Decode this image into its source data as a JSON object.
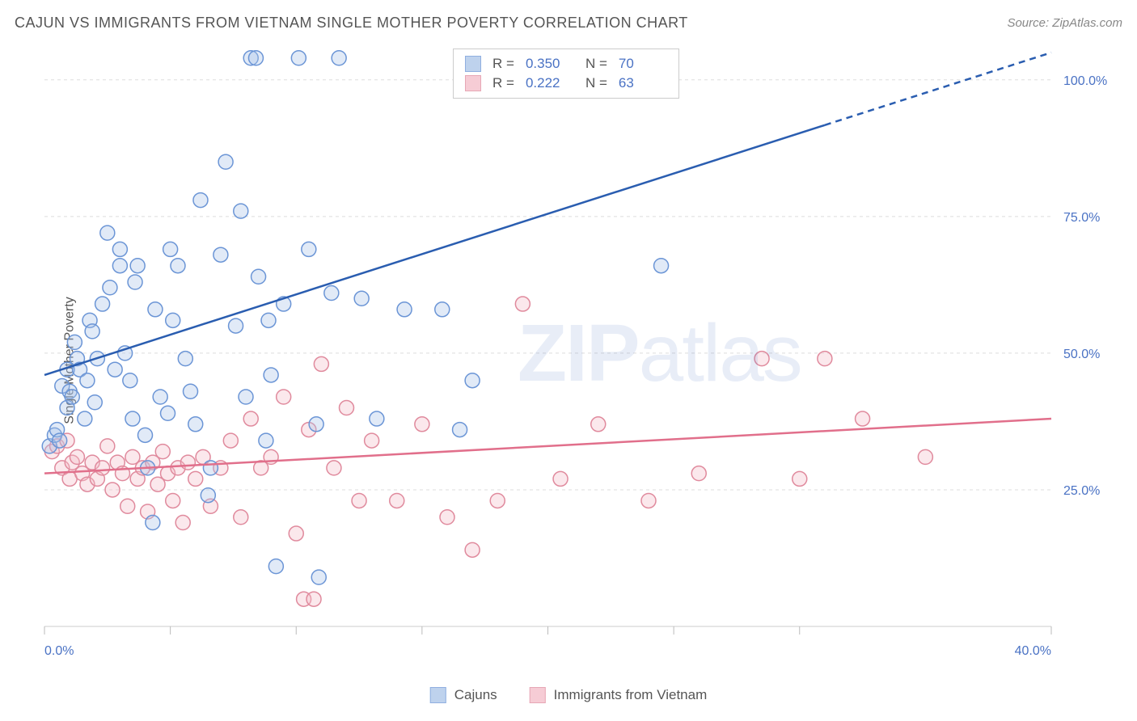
{
  "title": "CAJUN VS IMMIGRANTS FROM VIETNAM SINGLE MOTHER POVERTY CORRELATION CHART",
  "source_label": "Source: ZipAtlas.com",
  "y_axis_label": "Single Mother Poverty",
  "watermark": {
    "part1": "ZIP",
    "part2": "atlas"
  },
  "chart": {
    "type": "scatter",
    "background_color": "#ffffff",
    "grid_color": "#dddddd",
    "axis_color": "#cccccc",
    "tick_label_color": "#4a72c4",
    "xlim": [
      0,
      40
    ],
    "ylim": [
      0,
      105
    ],
    "x_ticks_major": [
      0,
      40
    ],
    "x_ticks_minor": [
      5,
      10,
      15,
      20,
      25,
      30
    ],
    "y_ticks": [
      25,
      50,
      75,
      100
    ],
    "x_tick_labels": {
      "0": "0.0%",
      "40": "40.0%"
    },
    "y_tick_labels": {
      "25": "25.0%",
      "50": "50.0%",
      "75": "75.0%",
      "100": "100.0%"
    },
    "marker_radius": 9,
    "marker_fill_opacity": 0.35,
    "marker_stroke_width": 1.5,
    "trend_line_width": 2.5,
    "series": [
      {
        "name": "Cajuns",
        "label": "Cajuns",
        "color_stroke": "#6b95d6",
        "color_fill": "#a9c3e8",
        "trend_color": "#2a5db0",
        "R": "0.350",
        "N": "70",
        "trend": {
          "x1": 0,
          "y1": 46,
          "x2": 40,
          "y2": 105,
          "solid_until_x": 31
        },
        "points": [
          [
            0.2,
            33
          ],
          [
            0.4,
            35
          ],
          [
            0.5,
            36
          ],
          [
            0.6,
            34
          ],
          [
            0.7,
            44
          ],
          [
            0.9,
            47
          ],
          [
            1.0,
            43
          ],
          [
            0.9,
            40
          ],
          [
            1.1,
            42
          ],
          [
            1.3,
            49
          ],
          [
            1.4,
            47
          ],
          [
            1.2,
            52
          ],
          [
            1.6,
            38
          ],
          [
            1.7,
            45
          ],
          [
            1.8,
            56
          ],
          [
            1.9,
            54
          ],
          [
            2.0,
            41
          ],
          [
            2.1,
            49
          ],
          [
            2.3,
            59
          ],
          [
            2.5,
            72
          ],
          [
            2.6,
            62
          ],
          [
            2.8,
            47
          ],
          [
            3.0,
            69
          ],
          [
            3.0,
            66
          ],
          [
            3.2,
            50
          ],
          [
            3.4,
            45
          ],
          [
            3.5,
            38
          ],
          [
            3.6,
            63
          ],
          [
            3.7,
            66
          ],
          [
            4.0,
            35
          ],
          [
            4.1,
            29
          ],
          [
            4.3,
            19
          ],
          [
            4.4,
            58
          ],
          [
            4.6,
            42
          ],
          [
            4.9,
            39
          ],
          [
            5.0,
            69
          ],
          [
            5.1,
            56
          ],
          [
            5.3,
            66
          ],
          [
            5.6,
            49
          ],
          [
            5.8,
            43
          ],
          [
            6.0,
            37
          ],
          [
            6.2,
            78
          ],
          [
            6.5,
            24
          ],
          [
            6.6,
            29
          ],
          [
            7.0,
            68
          ],
          [
            7.2,
            85
          ],
          [
            7.6,
            55
          ],
          [
            7.8,
            76
          ],
          [
            8.0,
            42
          ],
          [
            8.2,
            104
          ],
          [
            8.4,
            104
          ],
          [
            8.5,
            64
          ],
          [
            8.8,
            34
          ],
          [
            9.0,
            46
          ],
          [
            9.2,
            11
          ],
          [
            9.5,
            59
          ],
          [
            10.1,
            104
          ],
          [
            10.5,
            69
          ],
          [
            10.8,
            37
          ],
          [
            10.9,
            9
          ],
          [
            11.4,
            61
          ],
          [
            11.7,
            104
          ],
          [
            12.6,
            60
          ],
          [
            13.2,
            38
          ],
          [
            14.3,
            58
          ],
          [
            15.8,
            58
          ],
          [
            16.5,
            36
          ],
          [
            17.0,
            45
          ],
          [
            24.5,
            66
          ],
          [
            8.9,
            56
          ]
        ]
      },
      {
        "name": "Immigrants from Vietnam",
        "label": "Immigrants from Vietnam",
        "color_stroke": "#e08a9d",
        "color_fill": "#f3bcc8",
        "trend_color": "#e16f8b",
        "R": "0.222",
        "N": "63",
        "trend": {
          "x1": 0,
          "y1": 28,
          "x2": 40,
          "y2": 38,
          "solid_until_x": 40
        },
        "points": [
          [
            0.3,
            32
          ],
          [
            0.5,
            33
          ],
          [
            0.7,
            29
          ],
          [
            0.9,
            34
          ],
          [
            1.0,
            27
          ],
          [
            1.1,
            30
          ],
          [
            1.3,
            31
          ],
          [
            1.5,
            28
          ],
          [
            1.7,
            26
          ],
          [
            1.9,
            30
          ],
          [
            2.1,
            27
          ],
          [
            2.3,
            29
          ],
          [
            2.5,
            33
          ],
          [
            2.7,
            25
          ],
          [
            2.9,
            30
          ],
          [
            3.1,
            28
          ],
          [
            3.3,
            22
          ],
          [
            3.5,
            31
          ],
          [
            3.7,
            27
          ],
          [
            3.9,
            29
          ],
          [
            4.1,
            21
          ],
          [
            4.3,
            30
          ],
          [
            4.5,
            26
          ],
          [
            4.7,
            32
          ],
          [
            4.9,
            28
          ],
          [
            5.1,
            23
          ],
          [
            5.3,
            29
          ],
          [
            5.5,
            19
          ],
          [
            5.7,
            30
          ],
          [
            6.0,
            27
          ],
          [
            6.3,
            31
          ],
          [
            6.6,
            22
          ],
          [
            7.0,
            29
          ],
          [
            7.4,
            34
          ],
          [
            7.8,
            20
          ],
          [
            8.2,
            38
          ],
          [
            8.6,
            29
          ],
          [
            9.0,
            31
          ],
          [
            9.5,
            42
          ],
          [
            10.0,
            17
          ],
          [
            10.3,
            5
          ],
          [
            10.5,
            36
          ],
          [
            10.7,
            5
          ],
          [
            11.0,
            48
          ],
          [
            11.5,
            29
          ],
          [
            12.0,
            40
          ],
          [
            12.5,
            23
          ],
          [
            13.0,
            34
          ],
          [
            14.0,
            23
          ],
          [
            15.0,
            37
          ],
          [
            16.0,
            20
          ],
          [
            17.0,
            14
          ],
          [
            18.0,
            23
          ],
          [
            19.0,
            59
          ],
          [
            20.5,
            27
          ],
          [
            22.0,
            37
          ],
          [
            24.0,
            23
          ],
          [
            26.0,
            28
          ],
          [
            28.5,
            49
          ],
          [
            30.0,
            27
          ],
          [
            31.0,
            49
          ],
          [
            32.5,
            38
          ],
          [
            35.0,
            31
          ]
        ]
      }
    ]
  },
  "legend_top": {
    "R_label": "R",
    "N_label": "N",
    "equals": "="
  },
  "legend_bottom": {
    "items": [
      "Cajuns",
      "Immigrants from Vietnam"
    ]
  }
}
